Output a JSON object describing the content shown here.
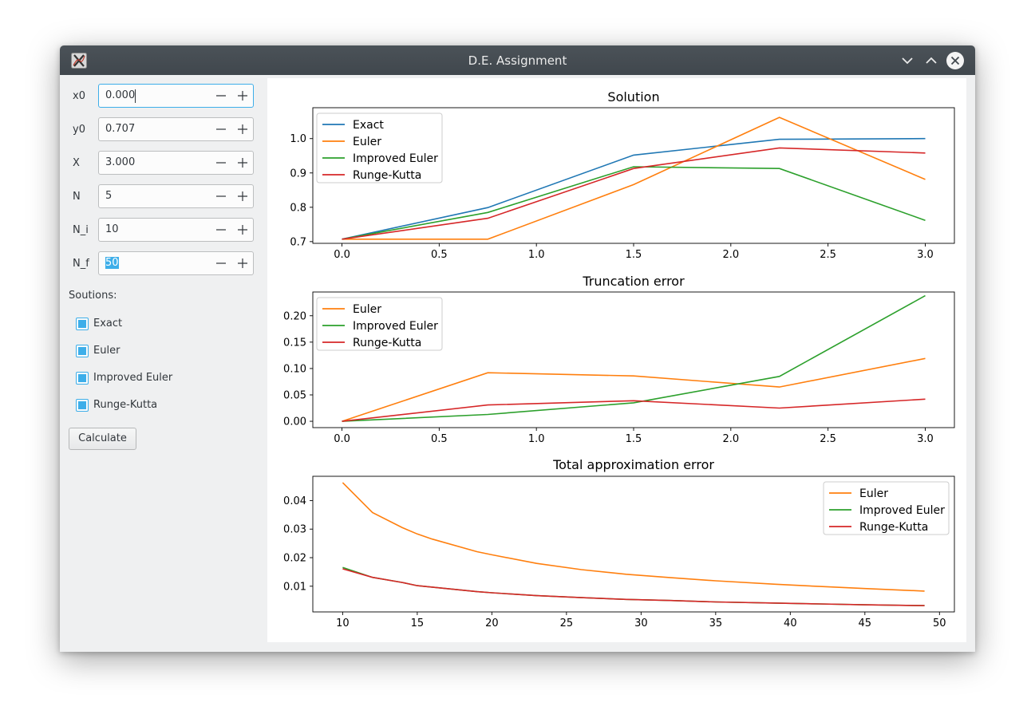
{
  "window": {
    "title": "D.E. Assignment"
  },
  "inputs": [
    {
      "label": "x0",
      "value": "0.000"
    },
    {
      "label": "y0",
      "value": "0.707"
    },
    {
      "label": "X",
      "value": "3.000"
    },
    {
      "label": "N",
      "value": "5"
    },
    {
      "label": "N_i",
      "value": "10"
    },
    {
      "label": "N_f",
      "value": "50"
    }
  ],
  "solutions": {
    "label": "Soutions:",
    "items": [
      {
        "label": "Exact",
        "checked": true
      },
      {
        "label": "Euler",
        "checked": true
      },
      {
        "label": "Improved Euler",
        "checked": true
      },
      {
        "label": "Runge-Kutta",
        "checked": true
      }
    ]
  },
  "calculate_label": "Calculate",
  "colors": {
    "exact": "#1f77b4",
    "euler": "#ff7f0e",
    "improved_euler": "#2ca02c",
    "runge_kutta": "#d62728",
    "accent": "#3daee9"
  },
  "chart_data": [
    {
      "type": "line",
      "title": "Solution",
      "x": [
        0.0,
        0.75,
        1.5,
        2.25,
        3.0
      ],
      "xlim": [
        -0.15,
        3.15
      ],
      "ylim": [
        0.695,
        1.09
      ],
      "xticks": [
        0.0,
        0.5,
        1.0,
        1.5,
        2.0,
        2.5,
        3.0
      ],
      "xtick_labels": [
        "0.0",
        "0.5",
        "1.0",
        "1.5",
        "2.0",
        "2.5",
        "3.0"
      ],
      "yticks": [
        0.7,
        0.8,
        0.9,
        1.0
      ],
      "ytick_labels": [
        "0.7",
        "0.8",
        "0.9",
        "1.0"
      ],
      "legend": "upper-left",
      "series": [
        {
          "name": "Exact",
          "color": "#1f77b4",
          "values": [
            0.707,
            0.799,
            0.952,
            0.998,
            1.0
          ]
        },
        {
          "name": "Euler",
          "color": "#ff7f0e",
          "values": [
            0.707,
            0.707,
            0.866,
            1.062,
            0.881
          ]
        },
        {
          "name": "Improved Euler",
          "color": "#2ca02c",
          "values": [
            0.707,
            0.785,
            0.918,
            0.913,
            0.762
          ]
        },
        {
          "name": "Runge-Kutta",
          "color": "#d62728",
          "values": [
            0.707,
            0.768,
            0.913,
            0.973,
            0.958
          ]
        }
      ]
    },
    {
      "type": "line",
      "title": "Truncation error",
      "x": [
        0.0,
        0.75,
        1.5,
        2.25,
        3.0
      ],
      "xlim": [
        -0.15,
        3.15
      ],
      "ylim": [
        -0.012,
        0.245
      ],
      "xticks": [
        0.0,
        0.5,
        1.0,
        1.5,
        2.0,
        2.5,
        3.0
      ],
      "xtick_labels": [
        "0.0",
        "0.5",
        "1.0",
        "1.5",
        "2.0",
        "2.5",
        "3.0"
      ],
      "yticks": [
        0.0,
        0.05,
        0.1,
        0.15,
        0.2
      ],
      "ytick_labels": [
        "0.00",
        "0.05",
        "0.10",
        "0.15",
        "0.20"
      ],
      "legend": "upper-left",
      "series": [
        {
          "name": "Euler",
          "color": "#ff7f0e",
          "values": [
            0.0,
            0.092,
            0.086,
            0.065,
            0.119
          ]
        },
        {
          "name": "Improved Euler",
          "color": "#2ca02c",
          "values": [
            0.0,
            0.013,
            0.035,
            0.085,
            0.238
          ]
        },
        {
          "name": "Runge-Kutta",
          "color": "#d62728",
          "values": [
            0.0,
            0.031,
            0.039,
            0.025,
            0.042
          ]
        }
      ]
    },
    {
      "type": "line",
      "title": "Total approximation error",
      "x": [
        10,
        12,
        14,
        15,
        16,
        19,
        20,
        23,
        26,
        29,
        32,
        35,
        39,
        42,
        45,
        49
      ],
      "xlim": [
        8,
        51
      ],
      "ylim": [
        0.001,
        0.0485
      ],
      "xticks": [
        10,
        15,
        20,
        25,
        30,
        35,
        40,
        45,
        50
      ],
      "xtick_labels": [
        "10",
        "15",
        "20",
        "25",
        "30",
        "35",
        "40",
        "45",
        "50"
      ],
      "yticks": [
        0.01,
        0.02,
        0.03,
        0.04
      ],
      "ytick_labels": [
        "0.01",
        "0.02",
        "0.03",
        "0.04"
      ],
      "legend": "upper-right",
      "series": [
        {
          "name": "Euler",
          "color": "#ff7f0e",
          "values": [
            0.0463,
            0.0358,
            0.0305,
            0.0283,
            0.0265,
            0.0221,
            0.021,
            0.018,
            0.0158,
            0.0142,
            0.013,
            0.0119,
            0.0107,
            0.0099,
            0.0092,
            0.0083
          ]
        },
        {
          "name": "Improved Euler",
          "color": "#2ca02c",
          "values": [
            0.0166,
            0.0131,
            0.0113,
            0.0102,
            0.0097,
            0.0081,
            0.0077,
            0.0067,
            0.006,
            0.0054,
            0.005,
            0.0045,
            0.0041,
            0.0038,
            0.0035,
            0.0032
          ]
        },
        {
          "name": "Runge-Kutta",
          "color": "#d62728",
          "values": [
            0.0161,
            0.0131,
            0.0113,
            0.0102,
            0.0097,
            0.0081,
            0.0077,
            0.0067,
            0.006,
            0.0054,
            0.005,
            0.0045,
            0.0041,
            0.0038,
            0.0035,
            0.0032
          ]
        }
      ]
    }
  ]
}
